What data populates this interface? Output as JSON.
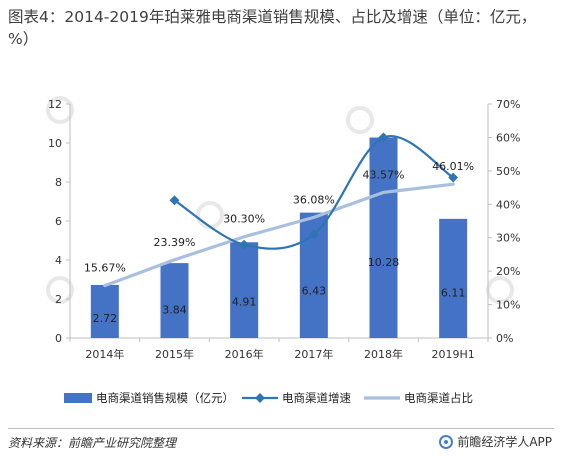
{
  "header": {
    "title": "图表4：2014-2019年珀莱雅电商渠道销售规模、占比及增速（单位：亿元，%）"
  },
  "footer": {
    "source": "资料来源：前瞻产业研究院整理",
    "brand": "前瞻经济学人APP"
  },
  "colors": {
    "bar": "#4472c4",
    "growth_line": "#2e75b6",
    "share_line": "#a9bfe0"
  },
  "chart_data": {
    "type": "bar",
    "categories": [
      "2014年",
      "2015年",
      "2016年",
      "2017年",
      "2018年",
      "2019H1"
    ],
    "series": [
      {
        "name": "电商渠道销售规模（亿元）",
        "type": "bar",
        "axis": "left",
        "values": [
          2.72,
          3.84,
          4.91,
          6.43,
          10.28,
          6.11
        ],
        "labels": [
          "2.72",
          "3.84",
          "4.91",
          "6.43",
          "10.28",
          "6.11"
        ]
      },
      {
        "name": "电商渠道增速",
        "type": "line",
        "axis": "right",
        "smooth": true,
        "values": [
          null,
          41.2,
          27.9,
          31.0,
          60.0,
          48.0
        ]
      },
      {
        "name": "电商渠道占比",
        "type": "line",
        "axis": "right",
        "values": [
          15.67,
          23.39,
          30.3,
          36.08,
          43.57,
          46.01
        ],
        "labels": [
          "15.67%",
          "23.39%",
          "30.30%",
          "36.08%",
          "43.57%",
          "46.01%"
        ]
      }
    ],
    "ylim_left": [
      0,
      12
    ],
    "yticks_left": [
      "0",
      "2",
      "4",
      "6",
      "8",
      "10",
      "12"
    ],
    "ylim_right": [
      0,
      70
    ],
    "yticks_right": [
      "0%",
      "10%",
      "20%",
      "30%",
      "40%",
      "50%",
      "60%",
      "70%"
    ],
    "legend_position": "bottom"
  }
}
